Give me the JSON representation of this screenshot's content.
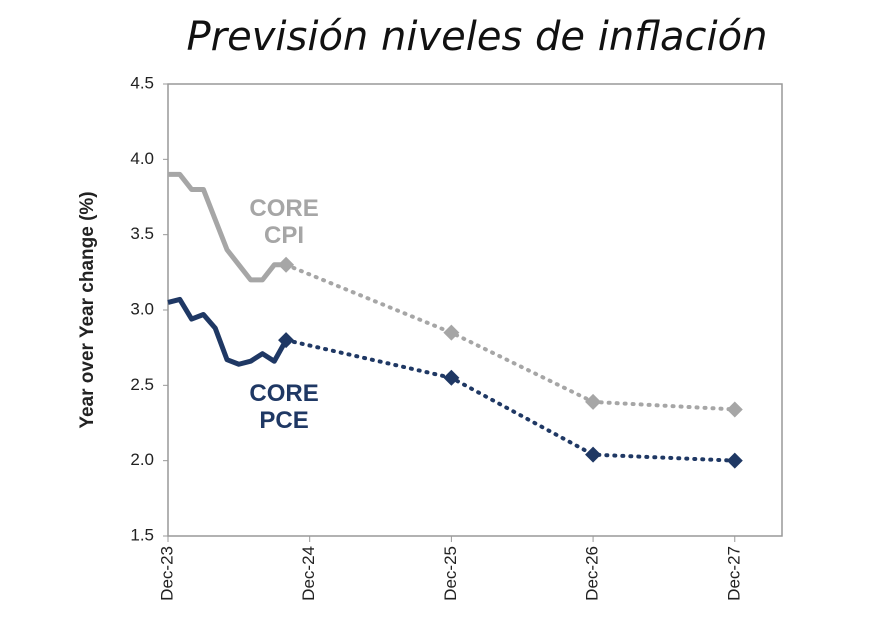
{
  "chart_data": {
    "type": "line",
    "title": "Previsión niveles de inflación",
    "y_label": "Year over Year change (%)",
    "xlim": [
      0,
      52
    ],
    "xticks": [
      {
        "value": 0,
        "label": "Dec-23"
      },
      {
        "value": 12,
        "label": "Dec-24"
      },
      {
        "value": 24,
        "label": "Dec-25"
      },
      {
        "value": 36,
        "label": "Dec-26"
      },
      {
        "value": 48,
        "label": "Dec-27"
      }
    ],
    "ylim": [
      1.5,
      4.5
    ],
    "yticks": [
      1.5,
      {
        "value": 2,
        "label": "2.0"
      },
      2.5,
      {
        "value": 3,
        "label": "3.0"
      },
      3.5,
      {
        "value": 4,
        "label": "4.0"
      },
      4.5
    ],
    "grid": false,
    "series": [
      {
        "name": "CORE CPI",
        "color": "#a6a6a6",
        "x": [
          0,
          1,
          2,
          3,
          4,
          5,
          6,
          7,
          8,
          9,
          10
        ],
        "values": [
          3.9,
          3.9,
          3.8,
          3.8,
          3.6,
          3.4,
          3.3,
          3.2,
          3.2,
          3.3,
          3.3
        ],
        "forecast_x": [
          24,
          36,
          48
        ],
        "forecast_values": [
          2.85,
          2.39,
          2.34
        ]
      },
      {
        "name": "CORE PCE",
        "color": "#1f3864",
        "x": [
          0,
          1,
          2,
          3,
          4,
          5,
          6,
          7,
          8,
          9,
          10
        ],
        "values": [
          3.05,
          3.07,
          2.94,
          2.97,
          2.88,
          2.67,
          2.64,
          2.66,
          2.71,
          2.66,
          2.8
        ],
        "forecast_x": [
          24,
          36,
          48
        ],
        "forecast_values": [
          2.55,
          2.04,
          2.0
        ]
      }
    ]
  }
}
